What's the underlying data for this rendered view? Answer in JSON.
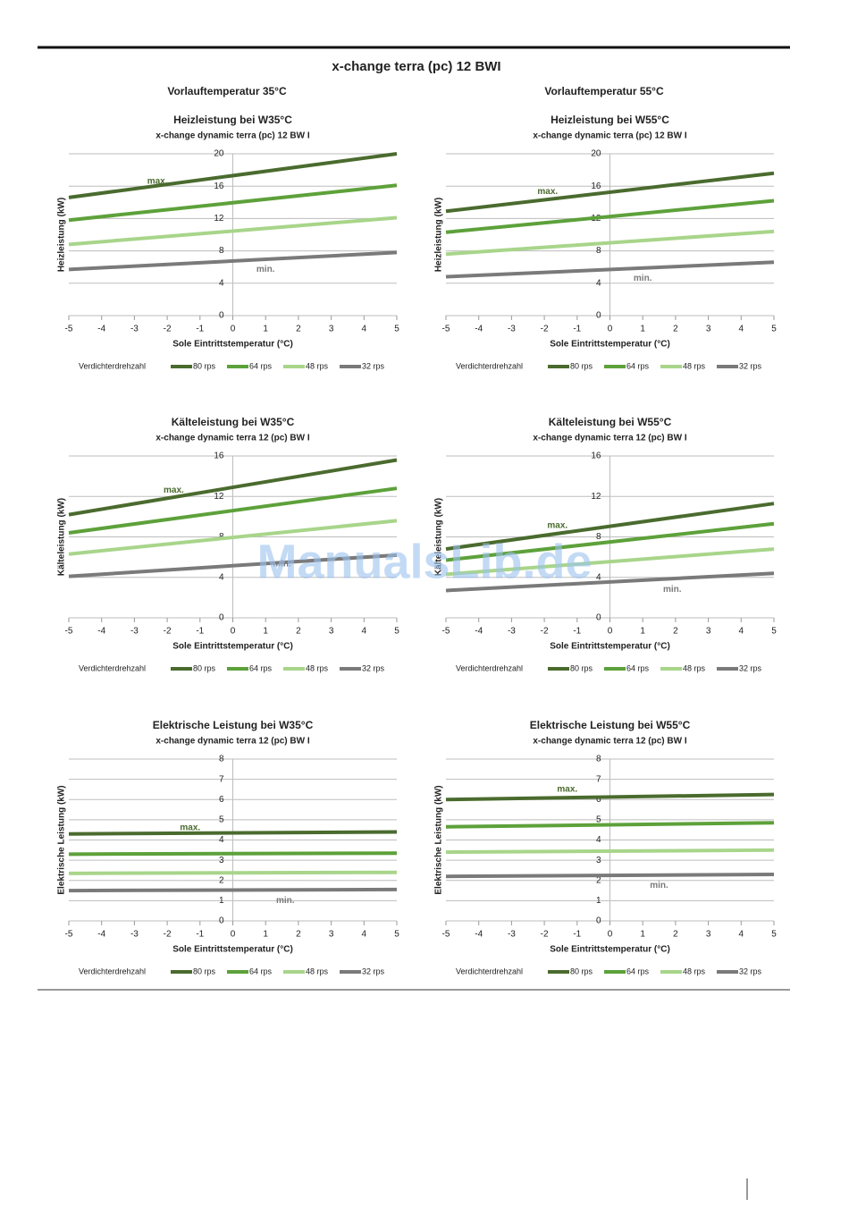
{
  "page": {
    "title": "x-change terra (pc) 12 BWI",
    "columns": [
      "Vorlauftemperatur 35°C",
      "Vorlauftemperatur 55°C"
    ],
    "watermark": "ManualsLib.de"
  },
  "chart_data": [
    {
      "type": "line",
      "title": "Heizleistung bei W35°C",
      "subtitle": "x-change dynamic terra (pc) 12 BW I",
      "y_label": "Heizleistung (kW)",
      "x_label": "Sole Eintrittstemperatur (°C)",
      "legend_title": "Verdichterdrehzahl",
      "x": [
        -5,
        5
      ],
      "xlim": [
        -5,
        5
      ],
      "xticks": [
        -5,
        -4,
        -3,
        -2,
        -1,
        0,
        1,
        2,
        3,
        4,
        5
      ],
      "ylim": [
        0,
        20
      ],
      "yticks": [
        0,
        4,
        8,
        12,
        16,
        20
      ],
      "grid": true,
      "series": [
        {
          "name": "80 rps",
          "color": "#4a6b2e",
          "values": [
            14.6,
            20.0
          ]
        },
        {
          "name": "64 rps",
          "color": "#5da13a",
          "values": [
            11.8,
            16.1
          ]
        },
        {
          "name": "48 rps",
          "color": "#a8d58a",
          "values": [
            8.8,
            12.1
          ]
        },
        {
          "name": "32 rps",
          "color": "#7a7a7a",
          "values": [
            5.7,
            7.8
          ]
        }
      ],
      "annotations": [
        {
          "text": "max.",
          "x": -2.3,
          "y": 16.6,
          "color": "#4a6b2e"
        },
        {
          "text": "min.",
          "x": 1,
          "y": 5.7,
          "color": "#7a7a7a"
        }
      ]
    },
    {
      "type": "line",
      "title": "Heizleistung bei W55°C",
      "subtitle": "x-change dynamic terra (pc) 12 BW I",
      "y_label": "Heizleistung (kW)",
      "x_label": "Sole Eintrittstemperatur (°C)",
      "legend_title": "Verdichterdrehzahl",
      "x": [
        -5,
        5
      ],
      "xlim": [
        -5,
        5
      ],
      "xticks": [
        -5,
        -4,
        -3,
        -2,
        -1,
        0,
        1,
        2,
        3,
        4,
        5
      ],
      "ylim": [
        0,
        20
      ],
      "yticks": [
        0,
        4,
        8,
        12,
        16,
        20
      ],
      "grid": true,
      "series": [
        {
          "name": "80 rps",
          "color": "#4a6b2e",
          "values": [
            12.9,
            17.6
          ]
        },
        {
          "name": "64 rps",
          "color": "#5da13a",
          "values": [
            10.3,
            14.2
          ]
        },
        {
          "name": "48 rps",
          "color": "#a8d58a",
          "values": [
            7.6,
            10.4
          ]
        },
        {
          "name": "32 rps",
          "color": "#7a7a7a",
          "values": [
            4.8,
            6.6
          ]
        }
      ],
      "annotations": [
        {
          "text": "max.",
          "x": -1.9,
          "y": 15.3,
          "color": "#4a6b2e"
        },
        {
          "text": "min.",
          "x": 1,
          "y": 4.6,
          "color": "#7a7a7a"
        }
      ]
    },
    {
      "type": "line",
      "title": "Kälteleistung bei W35°C",
      "subtitle": "x-change dynamic terra 12 (pc) BW I",
      "y_label": "Kälteleistung (kW)",
      "x_label": "Sole Eintrittstemperatur (°C)",
      "legend_title": "Verdichterdrehzahl",
      "x": [
        -5,
        5
      ],
      "xlim": [
        -5,
        5
      ],
      "xticks": [
        -5,
        -4,
        -3,
        -2,
        -1,
        0,
        1,
        2,
        3,
        4,
        5
      ],
      "ylim": [
        0,
        16
      ],
      "yticks": [
        0,
        4,
        8,
        12,
        16
      ],
      "grid": true,
      "series": [
        {
          "name": "80 rps",
          "color": "#4a6b2e",
          "values": [
            10.2,
            15.6
          ]
        },
        {
          "name": "64 rps",
          "color": "#5da13a",
          "values": [
            8.4,
            12.8
          ]
        },
        {
          "name": "48 rps",
          "color": "#a8d58a",
          "values": [
            6.3,
            9.6
          ]
        },
        {
          "name": "32 rps",
          "color": "#7a7a7a",
          "values": [
            4.1,
            6.2
          ]
        }
      ],
      "annotations": [
        {
          "text": "max.",
          "x": -1.8,
          "y": 12.6,
          "color": "#4a6b2e"
        },
        {
          "text": "min.",
          "x": 1.5,
          "y": 5.3,
          "color": "#7a7a7a"
        }
      ]
    },
    {
      "type": "line",
      "title": "Kälteleistung bei W55°C",
      "subtitle": "x-change dynamic terra 12 (pc) BW I",
      "y_label": "Kälteleistung (kW)",
      "x_label": "Sole Eintrittstemperatur (°C)",
      "legend_title": "Verdichterdrehzahl",
      "x": [
        -5,
        5
      ],
      "xlim": [
        -5,
        5
      ],
      "xticks": [
        -5,
        -4,
        -3,
        -2,
        -1,
        0,
        1,
        2,
        3,
        4,
        5
      ],
      "ylim": [
        0,
        16
      ],
      "yticks": [
        0,
        4,
        8,
        12,
        16
      ],
      "grid": true,
      "series": [
        {
          "name": "80 rps",
          "color": "#4a6b2e",
          "values": [
            6.8,
            11.3
          ]
        },
        {
          "name": "64 rps",
          "color": "#5da13a",
          "values": [
            5.7,
            9.3
          ]
        },
        {
          "name": "48 rps",
          "color": "#a8d58a",
          "values": [
            4.3,
            6.8
          ]
        },
        {
          "name": "32 rps",
          "color": "#7a7a7a",
          "values": [
            2.7,
            4.4
          ]
        }
      ],
      "annotations": [
        {
          "text": "max.",
          "x": -1.6,
          "y": 9.1,
          "color": "#4a6b2e"
        },
        {
          "text": "min.",
          "x": 1.9,
          "y": 2.8,
          "color": "#7a7a7a"
        }
      ]
    },
    {
      "type": "line",
      "title": "Elektrische Leistung bei W35°C",
      "subtitle": "x-change dynamic terra 12 (pc) BW I",
      "y_label": "Elektrische Leistung (kW)",
      "x_label": "Sole Eintrittstemperatur (°C)",
      "legend_title": "Verdichterdrehzahl",
      "x": [
        -5,
        5
      ],
      "xlim": [
        -5,
        5
      ],
      "xticks": [
        -5,
        -4,
        -3,
        -2,
        -1,
        0,
        1,
        2,
        3,
        4,
        5
      ],
      "ylim": [
        0,
        8
      ],
      "yticks": [
        0,
        1,
        2,
        3,
        4,
        5,
        6,
        7,
        8
      ],
      "grid": true,
      "series": [
        {
          "name": "80 rps",
          "color": "#4a6b2e",
          "values": [
            4.3,
            4.4
          ]
        },
        {
          "name": "64 rps",
          "color": "#5da13a",
          "values": [
            3.3,
            3.35
          ]
        },
        {
          "name": "48 rps",
          "color": "#a8d58a",
          "values": [
            2.35,
            2.4
          ]
        },
        {
          "name": "32 rps",
          "color": "#7a7a7a",
          "values": [
            1.5,
            1.55
          ]
        }
      ],
      "annotations": [
        {
          "text": "max.",
          "x": -1.3,
          "y": 4.6,
          "color": "#4a6b2e"
        },
        {
          "text": "min.",
          "x": 1.6,
          "y": 1.0,
          "color": "#7a7a7a"
        }
      ]
    },
    {
      "type": "line",
      "title": "Elektrische Leistung bei W55°C",
      "subtitle": "x-change dynamic terra 12 (pc) BW I",
      "y_label": "Elektrische Leistung (kW)",
      "x_label": "Sole Eintrittstemperatur (°C)",
      "legend_title": "Verdichterdrehzahl",
      "x": [
        -5,
        5
      ],
      "xlim": [
        -5,
        5
      ],
      "xticks": [
        -5,
        -4,
        -3,
        -2,
        -1,
        0,
        1,
        2,
        3,
        4,
        5
      ],
      "ylim": [
        0,
        8
      ],
      "yticks": [
        0,
        1,
        2,
        3,
        4,
        5,
        6,
        7,
        8
      ],
      "grid": true,
      "series": [
        {
          "name": "80 rps",
          "color": "#4a6b2e",
          "values": [
            6.0,
            6.25
          ]
        },
        {
          "name": "64 rps",
          "color": "#5da13a",
          "values": [
            4.65,
            4.85
          ]
        },
        {
          "name": "48 rps",
          "color": "#a8d58a",
          "values": [
            3.4,
            3.5
          ]
        },
        {
          "name": "32 rps",
          "color": "#7a7a7a",
          "values": [
            2.2,
            2.3
          ]
        }
      ],
      "annotations": [
        {
          "text": "max.",
          "x": -1.3,
          "y": 6.5,
          "color": "#4a6b2e"
        },
        {
          "text": "min.",
          "x": 1.5,
          "y": 1.75,
          "color": "#7a7a7a"
        }
      ]
    }
  ]
}
